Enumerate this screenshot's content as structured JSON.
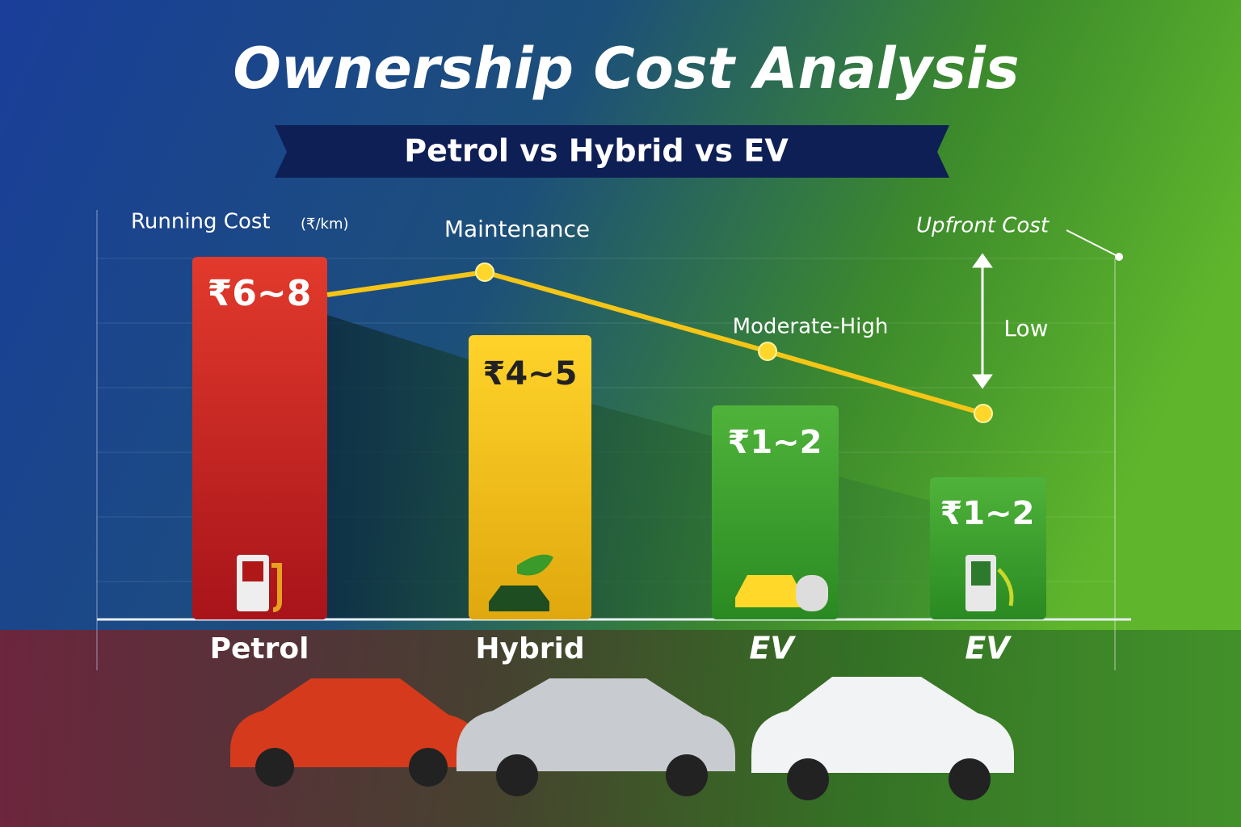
{
  "title": "Ownership Cost Analysis",
  "subtitle": "Petrol vs Hybrid vs EV",
  "annotations": {
    "running_cost": "Running Cost",
    "running_cost_unit": "(₹/km)",
    "maintenance": "Maintenance",
    "moderate_high": "Moderate-High",
    "upfront_cost": "Upfront Cost",
    "low": "Low"
  },
  "bars": [
    {
      "label": "₹6~8",
      "category": "Petrol"
    },
    {
      "label": "₹4~5",
      "category": "Hybrid"
    },
    {
      "label": "₹1~2",
      "category": "EV"
    },
    {
      "label": "₹1~2",
      "category": "EV"
    }
  ]
}
